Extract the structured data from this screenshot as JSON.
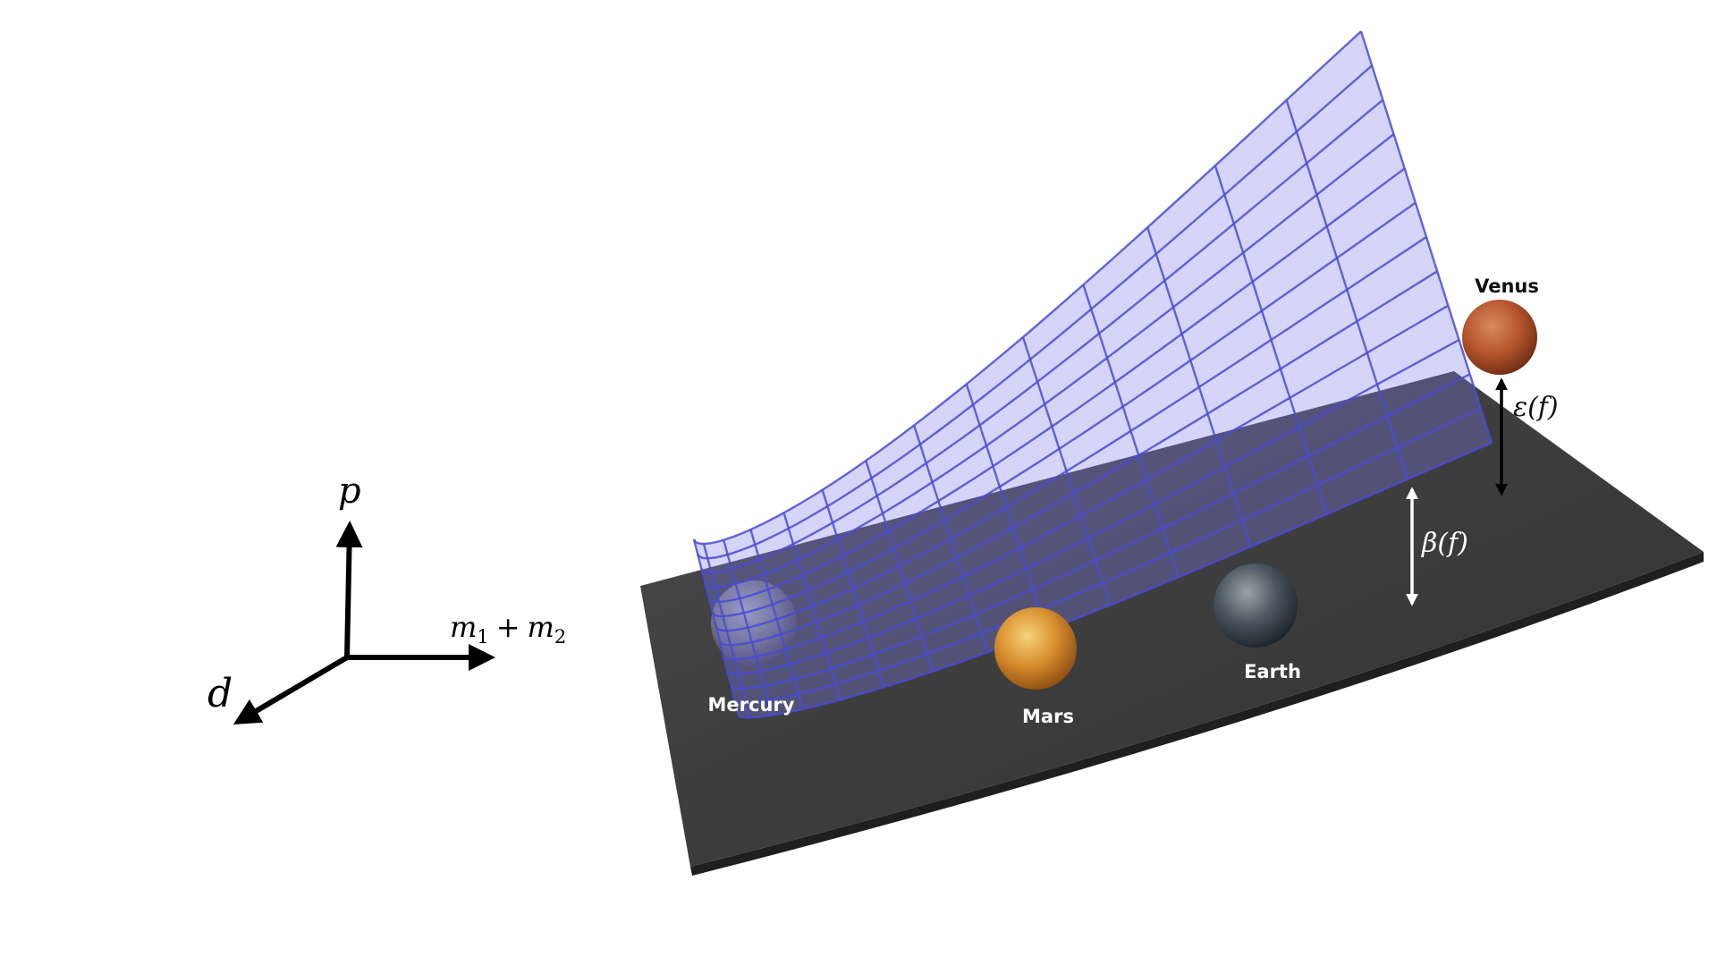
{
  "axes": {
    "vertical": "p",
    "right": "m",
    "right_sub1": "1",
    "right_plus": "+",
    "right_m2": "m",
    "right_sub2": "2",
    "diagonal": "d"
  },
  "planets": {
    "mercury": "Mercury",
    "mars": "Mars",
    "earth": "Earth",
    "venus": "Venus"
  },
  "annotations": {
    "epsilon": "ε(f)",
    "beta": "β(f)"
  },
  "colors": {
    "surface_fill": "#7b7cf0",
    "surface_grid": "#4a4ad6",
    "plane": "#3d3d3d",
    "plane_edge": "#2a2a2a",
    "arrow_dark": "#000000",
    "arrow_light": "#ffffff"
  }
}
